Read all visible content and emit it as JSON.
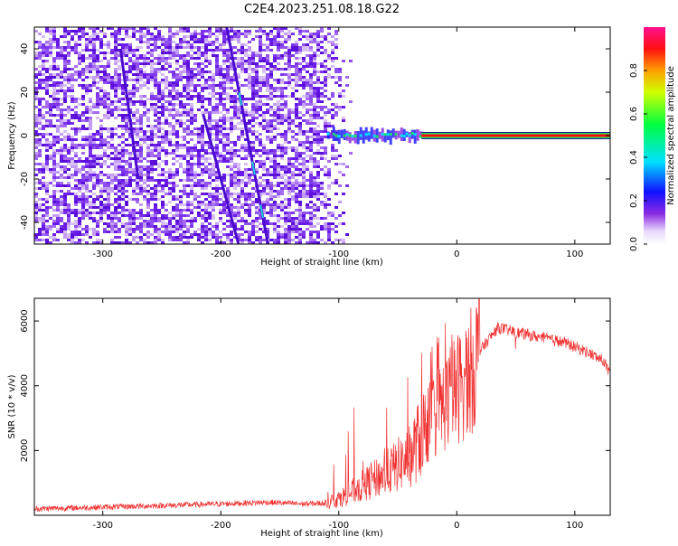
{
  "title": "C2E4.2023.251.08.18.G22",
  "colors": {
    "snr_line": "#f03030",
    "spectrogram_purple": "#6a1ae8",
    "spectrogram_light": "#d8bff5",
    "carrier_red": "#ff1010",
    "carrier_green": "#20e060"
  },
  "chart_data": [
    {
      "type": "heatmap",
      "title": "C2E4.2023.251.08.18.G22",
      "xlabel": "Height of straight line (km)",
      "ylabel": "Frequency (Hz)",
      "xlim": [
        -358,
        130
      ],
      "ylim": [
        -50,
        50
      ],
      "x_ticks": [
        -300,
        -200,
        -100,
        0,
        100
      ],
      "x_tick_labels": [
        "-300",
        "-200",
        "-100",
        "0",
        "100"
      ],
      "y_ticks": [
        -40,
        -20,
        0,
        20,
        40
      ],
      "y_tick_labels": [
        "-40",
        "-20",
        "0",
        "20",
        "40"
      ],
      "colorbar": {
        "label": "Normalized spectral amplitude",
        "range": [
          0,
          1
        ],
        "ticks": [
          0.0,
          0.2,
          0.4,
          0.6,
          0.8
        ],
        "tick_labels": [
          "0.0",
          "0.2",
          "0.4",
          "0.6",
          "0.8"
        ]
      },
      "noise_region_x": [
        -358,
        -105
      ],
      "carrier_frequency_hz": 0,
      "carrier_start_x": -110,
      "tracks": [
        {
          "x_start": -195,
          "y_start": 50,
          "x_end": -160,
          "y_end": -50
        },
        {
          "x_start": -215,
          "y_start": 10,
          "x_end": -185,
          "y_end": -50
        },
        {
          "x_start": -285,
          "y_start": 40,
          "x_end": -270,
          "y_end": -20
        }
      ],
      "grid": false
    },
    {
      "type": "line",
      "xlabel": "Height of straight line (km)",
      "ylabel": "SNR (10 * v/v)",
      "xlim": [
        -358,
        130
      ],
      "ylim": [
        0,
        6700
      ],
      "x_ticks": [
        -300,
        -200,
        -100,
        0,
        100
      ],
      "x_tick_labels": [
        "-300",
        "-200",
        "-100",
        "0",
        "100"
      ],
      "y_ticks": [
        2000,
        4000,
        6000
      ],
      "y_tick_labels": [
        "2000",
        "4000",
        "6000"
      ],
      "envelope": {
        "x": [
          -358,
          -300,
          -250,
          -200,
          -160,
          -130,
          -110,
          -100,
          -80,
          -60,
          -40,
          -25,
          -10,
          0,
          10,
          20,
          35,
          50,
          70,
          90,
          110,
          125,
          130
        ],
        "y": [
          200,
          250,
          300,
          350,
          400,
          350,
          380,
          500,
          900,
          1300,
          1800,
          2800,
          3500,
          3900,
          4300,
          5100,
          5800,
          5650,
          5500,
          5350,
          5050,
          4750,
          4300
        ]
      },
      "grid": false
    }
  ]
}
